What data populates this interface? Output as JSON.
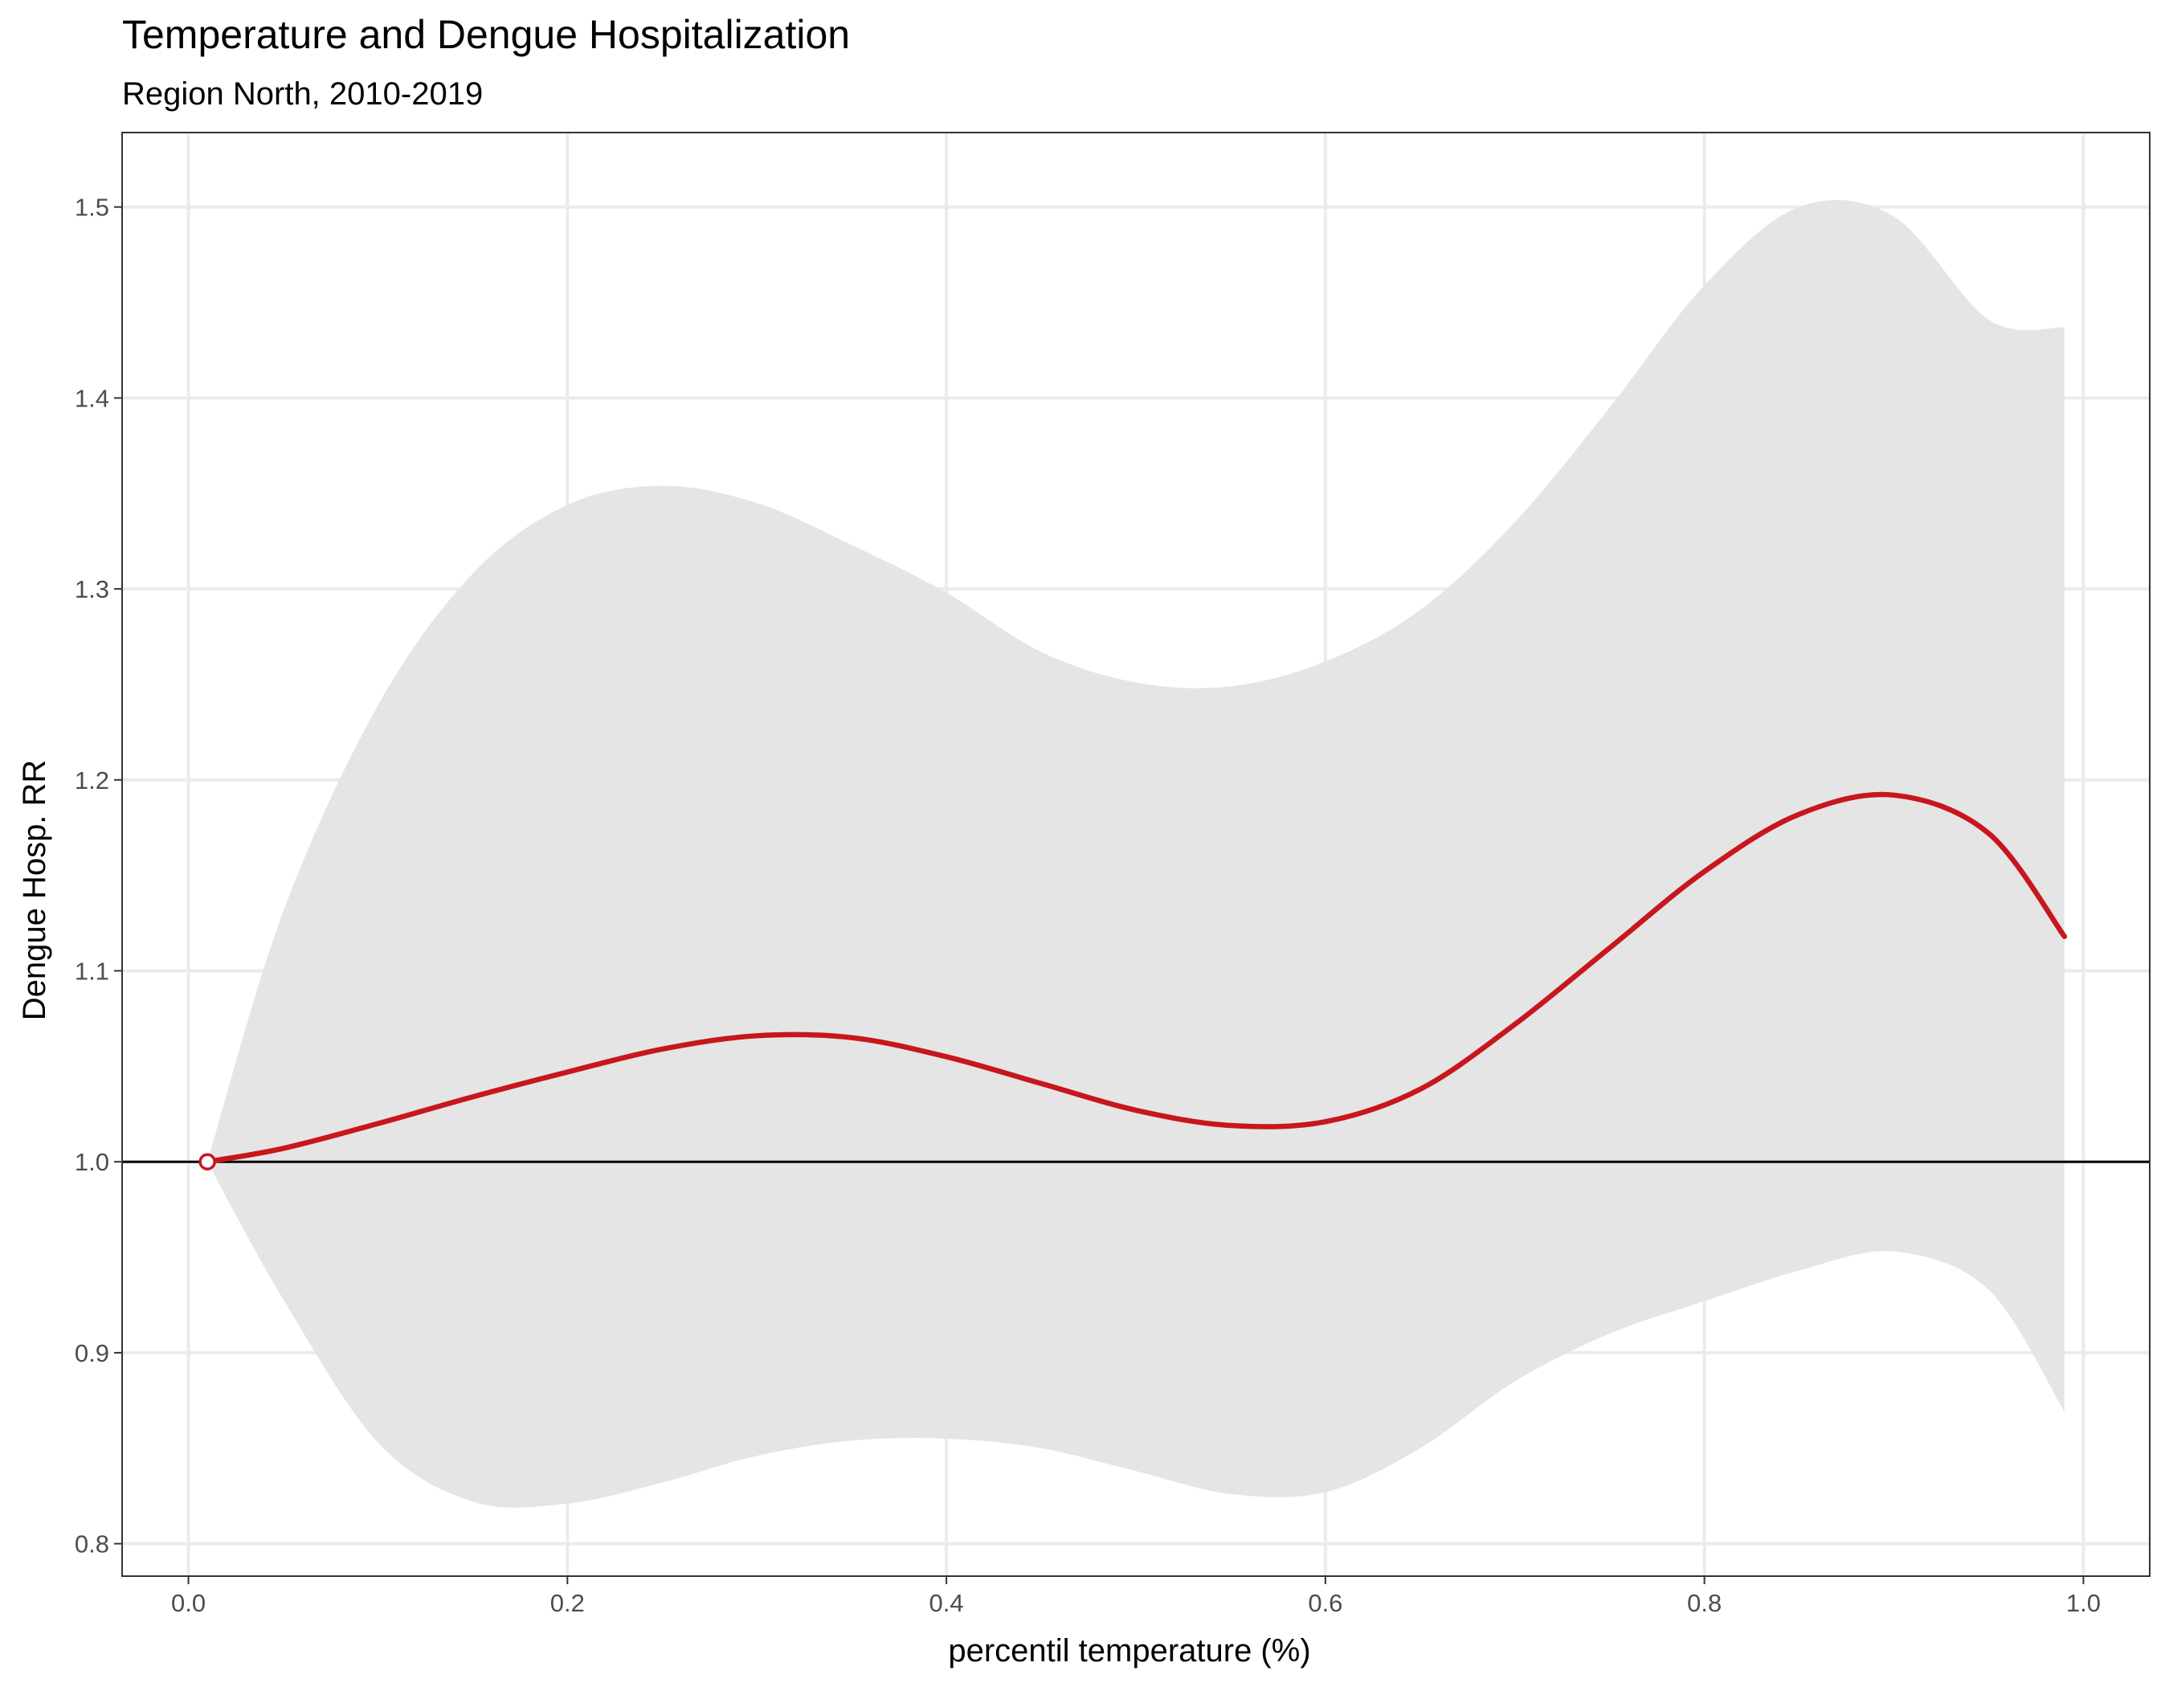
{
  "chart_data": {
    "type": "line",
    "title": "Temperature and Dengue Hospitalization",
    "subtitle": "Region North, 2010-2019",
    "xlabel": "percentil temperature (%)",
    "ylabel": "Dengue Hosp. RR",
    "xlim": [
      -0.035,
      1.035
    ],
    "ylim": [
      0.783,
      1.539
    ],
    "x_ticks": [
      0.0,
      0.2,
      0.4,
      0.6,
      0.8,
      1.0
    ],
    "x_tick_labels": [
      "0.0",
      "0.2",
      "0.4",
      "0.6",
      "0.8",
      "1.0"
    ],
    "y_ticks": [
      0.8,
      0.9,
      1.0,
      1.1,
      1.2,
      1.3,
      1.4,
      1.5
    ],
    "y_tick_labels": [
      "0.8",
      "0.9",
      "1.0",
      "1.1",
      "1.2",
      "1.3",
      "1.4",
      "1.5"
    ],
    "grid": true,
    "reference_line": 1.0,
    "reference_point": {
      "x": 0.01,
      "y": 1.0
    },
    "colors": {
      "line": "#c8161d",
      "ribbon": "#e5e5e5",
      "grid": "#ebebeb",
      "reference": "#000000"
    },
    "series": [
      {
        "x": [
          0.01,
          0.05,
          0.1,
          0.15,
          0.2,
          0.25,
          0.3,
          0.35,
          0.4,
          0.45,
          0.5,
          0.55,
          0.6,
          0.65,
          0.7,
          0.75,
          0.8,
          0.85,
          0.9,
          0.95,
          0.99
        ],
        "y": [
          1.0,
          1.007,
          1.02,
          1.034,
          1.047,
          1.059,
          1.066,
          1.065,
          1.055,
          1.041,
          1.027,
          1.019,
          1.021,
          1.038,
          1.072,
          1.112,
          1.152,
          1.182,
          1.192,
          1.172,
          1.118
        ],
        "lower": [
          1.0,
          0.928,
          0.853,
          0.822,
          0.821,
          0.832,
          0.846,
          0.854,
          0.855,
          0.85,
          0.838,
          0.826,
          0.827,
          0.85,
          0.885,
          0.91,
          0.927,
          0.943,
          0.953,
          0.933,
          0.869
        ],
        "upper": [
          1.0,
          1.131,
          1.239,
          1.308,
          1.344,
          1.354,
          1.345,
          1.323,
          1.298,
          1.267,
          1.251,
          1.249,
          1.262,
          1.289,
          1.335,
          1.395,
          1.459,
          1.5,
          1.495,
          1.441,
          1.437
        ]
      }
    ]
  }
}
